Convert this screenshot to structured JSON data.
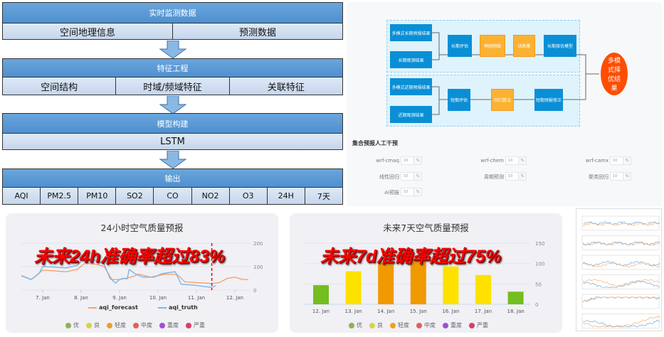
{
  "pipeline": {
    "stages": [
      {
        "title": "实时监测数据",
        "items": [
          "空间地理信息",
          "预测数据"
        ]
      },
      {
        "title": "特征工程",
        "items": [
          "空间结构",
          "时域/频域特征",
          "关联特征"
        ]
      },
      {
        "title": "模型构建",
        "items": [
          "LSTM"
        ]
      },
      {
        "title": "输出",
        "items": [
          "AQI",
          "PM2.5",
          "PM10",
          "SO2",
          "CO",
          "NO2",
          "O3",
          "24H",
          "7天"
        ]
      }
    ]
  },
  "flow": {
    "long_inputs": [
      "多模式长期预报结果",
      "长期观测结果"
    ],
    "long_eval": "长期评估",
    "neural_net": "神经网络",
    "train_set": "训练集",
    "long_model": "长期择优模型",
    "short_inputs": [
      "多模式近期预报结果",
      "近期观测结果"
    ],
    "short_eval": "短期评估",
    "regression": "回归算法",
    "short_fix": "短期预报修正",
    "result": "多模式择优结果"
  },
  "intervention": {
    "title": "集合预报人工干预",
    "fields": [
      {
        "label": "wrf-cmaq",
        "value": "10",
        "unit": "%"
      },
      {
        "label": "wrf-chem",
        "value": "10",
        "unit": "%"
      },
      {
        "label": "wrf-camx",
        "value": "10",
        "unit": "%"
      },
      {
        "label": "线性回归",
        "value": "10",
        "unit": "%"
      },
      {
        "label": "周期预测",
        "value": "10",
        "unit": "%"
      },
      {
        "label": "聚类回归",
        "value": "10",
        "unit": "%"
      },
      {
        "label": "AI预报",
        "value": "10",
        "unit": "%"
      }
    ]
  },
  "aqi_levels": [
    {
      "name": "优",
      "color": "#8cb352"
    },
    {
      "name": "良",
      "color": "#d8d34a"
    },
    {
      "name": "轻度",
      "color": "#f0a020"
    },
    {
      "name": "中度",
      "color": "#e0605a"
    },
    {
      "name": "重度",
      "color": "#a050d0"
    },
    {
      "name": "严重",
      "color": "#d84060"
    }
  ],
  "chart_data": [
    {
      "type": "line",
      "title": "24小时空气质量预报",
      "overlay": "未来24h准确率超过83%",
      "x_ticks": [
        "7. Jan",
        "8. Jan",
        "9. Jan",
        "10. Jan",
        "11. Jan",
        "12. Jan"
      ],
      "y_ticks": [
        0,
        100,
        200
      ],
      "ylim": [
        0,
        200
      ],
      "legend": "bottom",
      "x_unit": "day of January",
      "series": [
        {
          "name": "aqi_forecast",
          "color": "#f5a46a",
          "points": [
            [
              6.45,
              62
            ],
            [
              6.7,
              45
            ],
            [
              7.0,
              85
            ],
            [
              7.3,
              82
            ],
            [
              7.6,
              78
            ],
            [
              7.9,
              88
            ],
            [
              8.1,
              115
            ],
            [
              8.4,
              110
            ],
            [
              8.6,
              100
            ],
            [
              8.8,
              45
            ],
            [
              9.0,
              45
            ],
            [
              9.3,
              55
            ],
            [
              9.5,
              68
            ],
            [
              9.8,
              55
            ],
            [
              10.2,
              68
            ],
            [
              10.5,
              66
            ],
            [
              10.7,
              35
            ],
            [
              11.0,
              32
            ],
            [
              11.4,
              28
            ],
            [
              11.6,
              32
            ],
            [
              11.8,
              50
            ],
            [
              12.0,
              55
            ],
            [
              12.2,
              45
            ],
            [
              12.35,
              45
            ]
          ]
        },
        {
          "name": "aqi_truth",
          "color": "#7ab6ec",
          "points": [
            [
              6.45,
              60
            ],
            [
              6.7,
              45
            ],
            [
              6.9,
              70
            ],
            [
              7.0,
              100
            ],
            [
              7.3,
              98
            ],
            [
              7.6,
              94
            ],
            [
              7.9,
              105
            ],
            [
              8.0,
              125
            ],
            [
              8.2,
              132
            ],
            [
              8.4,
              125
            ],
            [
              8.6,
              110
            ],
            [
              8.75,
              50
            ],
            [
              8.9,
              30
            ],
            [
              9.0,
              45
            ],
            [
              9.1,
              50
            ],
            [
              9.2,
              48
            ],
            [
              9.25,
              88
            ],
            [
              9.4,
              70
            ],
            [
              9.6,
              55
            ],
            [
              9.9,
              55
            ],
            [
              10.1,
              70
            ],
            [
              10.3,
              75
            ],
            [
              10.45,
              78
            ],
            [
              10.6,
              25
            ],
            [
              11.0,
              20
            ],
            [
              11.2,
              15
            ],
            [
              11.4,
              12
            ],
            [
              11.5,
              18
            ]
          ]
        }
      ],
      "marker_x": 11.4
    },
    {
      "type": "bar",
      "title": "未来7天空气质量预报",
      "overlay": "未来7d准确率超过75%",
      "categories": [
        "12. Jan",
        "13. Jan",
        "14. Jan",
        "15. Jan",
        "16. Jan",
        "17. Jan",
        "18. Jan"
      ],
      "values": [
        47,
        81,
        102,
        110,
        93,
        72,
        31
      ],
      "colors": [
        "#74be1f",
        "#ffe100",
        "#f09a00",
        "#f09a00",
        "#ffe100",
        "#ffe100",
        "#74be1f"
      ],
      "y_ticks": [
        0,
        50,
        100,
        150
      ],
      "ylim": [
        0,
        150
      ]
    }
  ]
}
